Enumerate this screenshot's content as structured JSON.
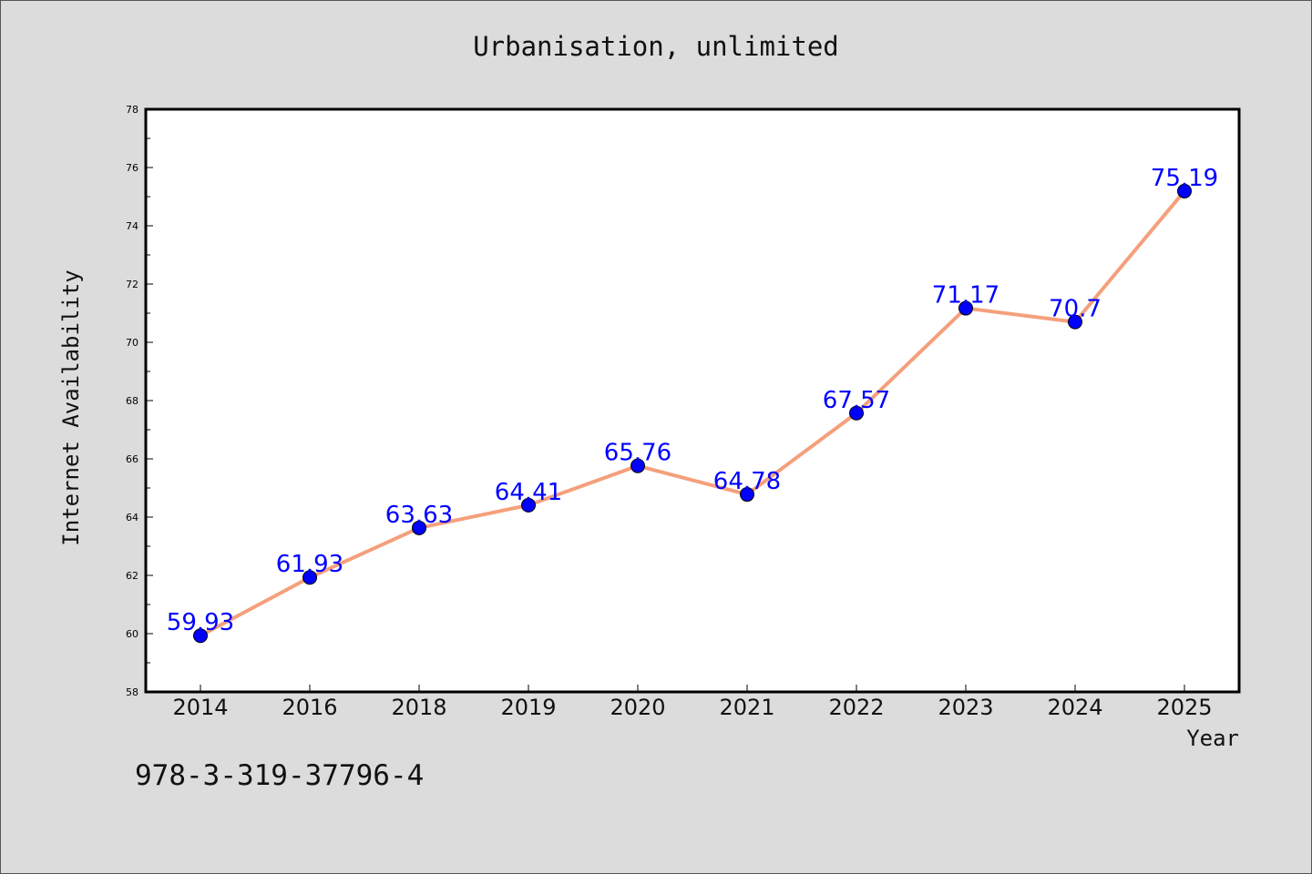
{
  "chart_data": {
    "type": "line",
    "title": "Urbanisation, unlimited",
    "xlabel": "Year",
    "ylabel": "Internet Availability",
    "categories": [
      "2014",
      "2016",
      "2018",
      "2019",
      "2020",
      "2021",
      "2022",
      "2023",
      "2024",
      "2025"
    ],
    "series": [
      {
        "values": [
          59.93,
          61.93,
          63.63,
          64.41,
          65.76,
          64.78,
          67.57,
          71.17,
          70.7,
          75.19
        ],
        "labels": [
          "59.93",
          "61.93",
          "63.63",
          "64.41",
          "65.76",
          "64.78",
          "67.57",
          "71.17",
          "70.7",
          "75.19"
        ],
        "line_color": "#f4a07c",
        "marker_color": "#0000ff"
      }
    ],
    "ylim": [
      58,
      78
    ],
    "yticks": [
      58,
      60,
      62,
      64,
      66,
      68,
      70,
      72,
      74,
      76,
      78
    ],
    "grid": false,
    "legend": "none"
  },
  "footer": {
    "isbn": "978-3-319-37796-4"
  }
}
